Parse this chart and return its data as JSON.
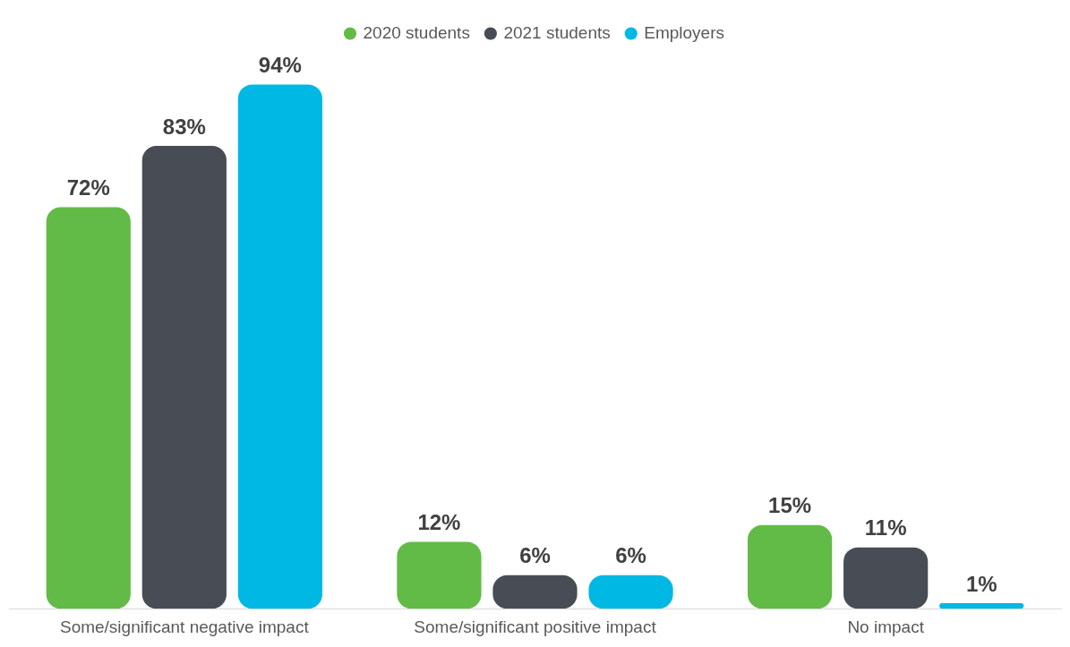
{
  "chart_data": {
    "type": "bar",
    "categories": [
      "Some/significant negative impact",
      "Some/significant positive impact",
      "No impact"
    ],
    "series": [
      {
        "name": "2020 students",
        "color": "#62bb46",
        "values": [
          72,
          12,
          15
        ],
        "value_labels": [
          "72%",
          "12%",
          "15%"
        ]
      },
      {
        "name": "2021 students",
        "color": "#474c55",
        "values": [
          83,
          6,
          11
        ],
        "value_labels": [
          "83%",
          "6%",
          "11%"
        ]
      },
      {
        "name": "Employers",
        "color": "#00b8e4",
        "values": [
          94,
          6,
          1
        ],
        "value_labels": [
          "94%",
          "6%",
          "1%"
        ]
      }
    ],
    "legend": "top",
    "grid": false
  }
}
